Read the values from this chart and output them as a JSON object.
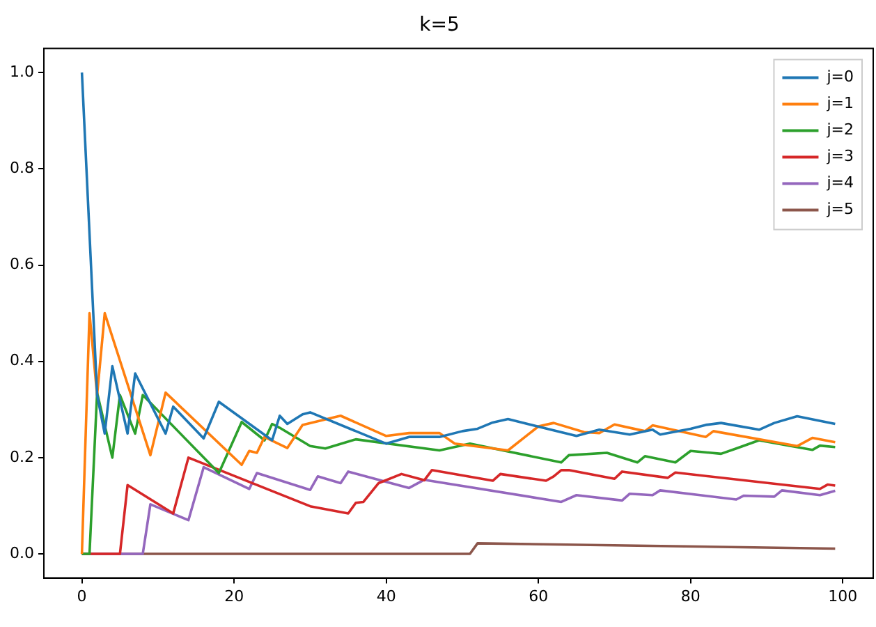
{
  "chart_data": {
    "type": "line",
    "title": "k=5",
    "xlim": [
      -5,
      104
    ],
    "ylim": [
      -0.05,
      1.05
    ],
    "xticks": [
      0,
      20,
      40,
      60,
      80,
      100
    ],
    "yticks": [
      {
        "value": 0,
        "label": "0.0"
      },
      {
        "value": 0.2,
        "label": "0.2"
      },
      {
        "value": 0.4,
        "label": "0.4"
      },
      {
        "value": 0.6,
        "label": "0.6"
      },
      {
        "value": 0.8,
        "label": "0.8"
      },
      {
        "value": 1,
        "label": "1.0"
      }
    ],
    "grid": false,
    "legend": "top right",
    "marker": "none",
    "line_style": "solid",
    "series": [
      {
        "name": "j=0",
        "color": "#1f77b4",
        "x": [
          0,
          2,
          3,
          4,
          6,
          7,
          11,
          12,
          16,
          18,
          25,
          26,
          27,
          29,
          30,
          40,
          43,
          47,
          50,
          52,
          54,
          56,
          65,
          68,
          72,
          75,
          76,
          80,
          82,
          84,
          89,
          91,
          94,
          99
        ],
        "values": [
          1.0,
          0.33,
          0.25,
          0.39,
          0.25,
          0.375,
          0.25,
          0.306,
          0.24,
          0.316,
          0.236,
          0.287,
          0.27,
          0.29,
          0.294,
          0.229,
          0.243,
          0.243,
          0.255,
          0.26,
          0.273,
          0.28,
          0.245,
          0.258,
          0.248,
          0.258,
          0.248,
          0.26,
          0.268,
          0.272,
          0.258,
          0.272,
          0.286,
          0.27
        ]
      },
      {
        "name": "j=1",
        "color": "#ff7f0e",
        "x": [
          0,
          1,
          2,
          3,
          9,
          11,
          21,
          22,
          23,
          24,
          25,
          27,
          29,
          34,
          40,
          43,
          47,
          49,
          56,
          60,
          62,
          66,
          68,
          70,
          74,
          75,
          82,
          83,
          94,
          96,
          99
        ],
        "values": [
          0,
          0.5,
          0.33,
          0.5,
          0.205,
          0.335,
          0.185,
          0.214,
          0.21,
          0.243,
          0.235,
          0.22,
          0.268,
          0.287,
          0.245,
          0.251,
          0.251,
          0.229,
          0.215,
          0.265,
          0.272,
          0.253,
          0.251,
          0.269,
          0.255,
          0.267,
          0.243,
          0.255,
          0.224,
          0.241,
          0.232
        ]
      },
      {
        "name": "j=2",
        "color": "#2ca02c",
        "x": [
          0,
          1,
          2,
          4,
          5,
          7,
          8,
          18,
          21,
          24,
          25,
          26,
          30,
          32,
          36,
          47,
          51,
          63,
          64,
          69,
          73,
          74,
          78,
          80,
          84,
          86,
          89,
          96,
          97,
          99
        ],
        "values": [
          0,
          0,
          0.335,
          0.2,
          0.33,
          0.25,
          0.33,
          0.168,
          0.274,
          0.236,
          0.27,
          0.262,
          0.224,
          0.219,
          0.238,
          0.215,
          0.229,
          0.19,
          0.205,
          0.21,
          0.19,
          0.203,
          0.19,
          0.214,
          0.208,
          0.219,
          0.236,
          0.216,
          0.225,
          0.222
        ]
      },
      {
        "name": "j=3",
        "color": "#d62728",
        "x": [
          0,
          5,
          6,
          12,
          14,
          30,
          35,
          36,
          37,
          39,
          42,
          45,
          46,
          54,
          55,
          61,
          62,
          63,
          64,
          70,
          71,
          77,
          78,
          97,
          98,
          99
        ],
        "values": [
          0,
          0,
          0.143,
          0.084,
          0.2,
          0.099,
          0.084,
          0.106,
          0.108,
          0.147,
          0.166,
          0.153,
          0.174,
          0.152,
          0.166,
          0.152,
          0.161,
          0.174,
          0.174,
          0.156,
          0.171,
          0.158,
          0.169,
          0.135,
          0.144,
          0.142
        ]
      },
      {
        "name": "j=4",
        "color": "#9467bd",
        "x": [
          0,
          8,
          9,
          14,
          16,
          22,
          23,
          30,
          31,
          34,
          35,
          43,
          45,
          63,
          65,
          71,
          72,
          75,
          76,
          86,
          87,
          91,
          92,
          97,
          99
        ],
        "values": [
          0,
          0,
          0.103,
          0.07,
          0.18,
          0.135,
          0.168,
          0.133,
          0.161,
          0.147,
          0.171,
          0.137,
          0.154,
          0.108,
          0.122,
          0.111,
          0.125,
          0.122,
          0.132,
          0.113,
          0.121,
          0.119,
          0.132,
          0.122,
          0.131
        ]
      },
      {
        "name": "j=5",
        "color": "#8c564b",
        "x": [
          0,
          51,
          52,
          99
        ],
        "values": [
          0,
          0,
          0.022,
          0.011
        ]
      }
    ]
  }
}
